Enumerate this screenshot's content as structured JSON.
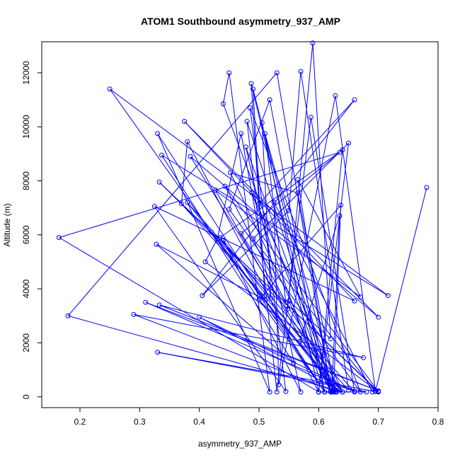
{
  "chart_data": {
    "type": "line",
    "title": "ATOM1 Southbound asymmetry_937_AMP",
    "xlabel": "asymmetry_937_AMP",
    "ylabel": "Altitude (m)",
    "xlim": [
      0.136,
      0.8
    ],
    "ylim": [
      -400,
      13150
    ],
    "xticks": [
      0.2,
      0.3,
      0.4,
      0.5,
      0.6,
      0.7,
      0.8
    ],
    "xtick_labels": [
      "0.2",
      "0.3",
      "0.4",
      "0.5",
      "0.6",
      "0.7",
      "0.8"
    ],
    "yticks": [
      0,
      2000,
      4000,
      6000,
      8000,
      10000,
      12000
    ],
    "ytick_labels": [
      "0",
      "2000",
      "4000",
      "6000",
      "8000",
      "10000",
      "12000"
    ],
    "grid": false,
    "series": [
      {
        "color": "#0000FF",
        "points": [
          [
            0.781,
            7750
          ],
          [
            0.695,
            200
          ],
          [
            0.33,
            1650
          ],
          [
            0.68,
            180
          ],
          [
            0.61,
            180
          ],
          [
            0.63,
            180
          ],
          [
            0.29,
            3050
          ],
          [
            0.675,
            1450
          ],
          [
            0.333,
            3400
          ],
          [
            0.7,
            220
          ],
          [
            0.31,
            3500
          ],
          [
            0.66,
            200
          ],
          [
            0.4,
            2950
          ],
          [
            0.64,
            180
          ],
          [
            0.18,
            3000
          ],
          [
            0.53,
            12000
          ],
          [
            0.62,
            220
          ],
          [
            0.44,
            10850
          ],
          [
            0.45,
            12000
          ],
          [
            0.518,
            180
          ],
          [
            0.33,
            9750
          ],
          [
            0.61,
            180
          ],
          [
            0.25,
            11400
          ],
          [
            0.716,
            3750
          ],
          [
            0.337,
            8950
          ],
          [
            0.558,
            1250
          ],
          [
            0.328,
            5650
          ],
          [
            0.51,
            3600
          ],
          [
            0.49,
            11400
          ],
          [
            0.62,
            200
          ],
          [
            0.55,
            3550
          ],
          [
            0.62,
            2150
          ],
          [
            0.59,
            13100
          ],
          [
            0.548,
            3250
          ],
          [
            0.333,
            7950
          ],
          [
            0.7,
            180
          ],
          [
            0.41,
            5000
          ],
          [
            0.43,
            5850
          ],
          [
            0.47,
            9750
          ],
          [
            0.52,
            3650
          ],
          [
            0.505,
            10150
          ],
          [
            0.6,
            180
          ],
          [
            0.38,
            9450
          ],
          [
            0.37,
            7150
          ],
          [
            0.65,
            250
          ],
          [
            0.57,
            12050
          ],
          [
            0.55,
            6900
          ],
          [
            0.405,
            3750
          ],
          [
            0.66,
            11000
          ],
          [
            0.5,
            7150
          ],
          [
            0.487,
            11600
          ],
          [
            0.61,
            180
          ],
          [
            0.435,
            5900
          ],
          [
            0.64,
            9150
          ],
          [
            0.6,
            180
          ],
          [
            0.165,
            5900
          ],
          [
            0.635,
            9050
          ],
          [
            0.47,
            6050
          ],
          [
            0.64,
            180
          ],
          [
            0.488,
            7550
          ],
          [
            0.61,
            180
          ],
          [
            0.518,
            11000
          ],
          [
            0.45,
            6950
          ],
          [
            0.67,
            180
          ],
          [
            0.485,
            10700
          ],
          [
            0.545,
            200
          ],
          [
            0.325,
            7050
          ],
          [
            0.66,
            3550
          ],
          [
            0.375,
            10200
          ],
          [
            0.7,
            2950
          ],
          [
            0.385,
            8900
          ],
          [
            0.63,
            250
          ],
          [
            0.42,
            6100
          ],
          [
            0.7,
            200
          ],
          [
            0.443,
            7800
          ],
          [
            0.545,
            3500
          ],
          [
            0.51,
            9750
          ],
          [
            0.63,
            180
          ],
          [
            0.38,
            7200
          ],
          [
            0.66,
            180
          ],
          [
            0.587,
            10350
          ],
          [
            0.53,
            180
          ],
          [
            0.48,
            10200
          ],
          [
            0.625,
            200
          ],
          [
            0.478,
            9250
          ],
          [
            0.57,
            180
          ],
          [
            0.44,
            5800
          ],
          [
            0.64,
            180
          ],
          [
            0.5,
            3600
          ],
          [
            0.637,
            7100
          ],
          [
            0.625,
            180
          ],
          [
            0.452,
            8300
          ],
          [
            0.565,
            7550
          ],
          [
            0.628,
            180
          ],
          [
            0.568,
            2050
          ],
          [
            0.635,
            6700
          ],
          [
            0.622,
            180
          ],
          [
            0.427,
            7650
          ],
          [
            0.67,
            3700
          ],
          [
            0.565,
            8050
          ],
          [
            0.62,
            180
          ],
          [
            0.6,
            180
          ],
          [
            0.65,
            9400
          ],
          [
            0.49,
            5850
          ],
          [
            0.695,
            220
          ],
          [
            0.628,
            11150
          ],
          [
            0.533,
            450
          ],
          [
            0.525,
            7200
          ],
          [
            0.69,
            180
          ]
        ]
      }
    ]
  }
}
